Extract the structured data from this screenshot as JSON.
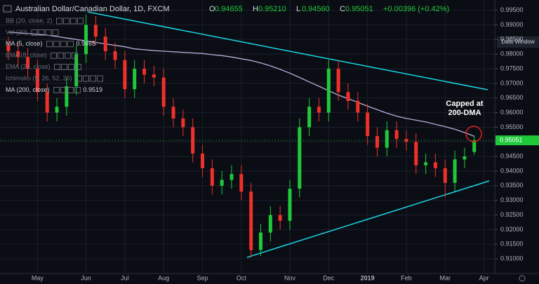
{
  "chart_data": {
    "type": "candlestick",
    "title": "Australian Dollar/Canadian Dollar, 1D, FXCM",
    "header_quote": [
      {
        "label": "O",
        "value": "0.94655"
      },
      {
        "label": "H",
        "value": "0.95210"
      },
      {
        "label": "L",
        "value": "0.94560"
      },
      {
        "label": "C",
        "value": "0.95051"
      }
    ],
    "change": "+0.00396 (+0.42%)",
    "indicators": [
      {
        "name": "BB (20, close, 2)"
      },
      {
        "name": "Vol (20)"
      },
      {
        "name": "MA (5, close)",
        "value": "0.9465"
      },
      {
        "name": "EMA (8, close)"
      },
      {
        "name": "EMA (21, close)"
      },
      {
        "name": "Ichimoku (9, 26, 52, 26)"
      }
    ],
    "data_window_button": "Data Window",
    "annotation": [
      "Capped at",
      "200-DMA"
    ],
    "categories": [
      null,
      null,
      null,
      "May",
      null,
      null,
      null,
      null,
      "Jun",
      null,
      null,
      null,
      "Jul",
      null,
      null,
      null,
      "Aug",
      null,
      null,
      null,
      "Sep",
      null,
      null,
      null,
      "Oct",
      null,
      null,
      null,
      null,
      "Nov",
      null,
      null,
      null,
      "Dec",
      null,
      null,
      null,
      "2019",
      null,
      null,
      null,
      "Feb",
      null,
      null,
      null,
      "Mar",
      null,
      null,
      null,
      "Apr"
    ],
    "open": [
      0.983,
      0.981,
      0.979,
      0.975,
      0.967,
      0.96,
      0.962,
      0.969,
      0.98,
      0.99,
      0.986,
      0.981,
      0.978,
      0.968,
      0.975,
      0.973,
      0.972,
      0.962,
      0.958,
      0.955,
      0.946,
      0.941,
      0.935,
      0.937,
      0.939,
      0.933,
      0.913,
      0.919,
      0.925,
      0.923,
      0.934,
      0.955,
      0.962,
      0.96,
      0.975,
      0.967,
      0.964,
      0.96,
      0.952,
      0.948,
      0.954,
      0.951,
      0.95,
      0.942,
      0.943,
      0.941,
      0.936,
      0.944,
      0.94655,
      null
    ],
    "high": [
      0.986,
      0.984,
      0.982,
      0.978,
      0.97,
      0.965,
      0.972,
      0.983,
      0.9935,
      0.993,
      0.989,
      0.984,
      0.981,
      0.978,
      0.978,
      0.976,
      0.975,
      0.965,
      0.961,
      0.958,
      0.949,
      0.944,
      0.94,
      0.942,
      0.942,
      0.936,
      0.922,
      0.928,
      0.928,
      0.937,
      0.958,
      0.965,
      0.965,
      0.978,
      0.978,
      0.97,
      0.967,
      0.963,
      0.955,
      0.957,
      0.957,
      0.954,
      0.953,
      0.946,
      0.946,
      0.944,
      0.947,
      0.948,
      0.9521,
      null
    ],
    "low": [
      0.978,
      0.976,
      0.972,
      0.964,
      0.957,
      0.957,
      0.959,
      0.966,
      0.977,
      0.983,
      0.978,
      0.975,
      0.965,
      0.965,
      0.97,
      0.969,
      0.959,
      0.955,
      0.952,
      0.943,
      0.938,
      0.932,
      0.932,
      0.934,
      0.93,
      0.9105,
      0.911,
      0.916,
      0.92,
      0.92,
      0.931,
      0.952,
      0.957,
      0.957,
      0.964,
      0.961,
      0.957,
      0.949,
      0.945,
      0.945,
      0.948,
      0.947,
      0.939,
      0.939,
      0.938,
      0.931,
      0.933,
      0.941,
      0.9456,
      null
    ],
    "close": [
      0.981,
      0.979,
      0.975,
      0.967,
      0.96,
      0.962,
      0.969,
      0.98,
      0.99,
      0.986,
      0.981,
      0.978,
      0.968,
      0.975,
      0.973,
      0.972,
      0.962,
      0.958,
      0.955,
      0.946,
      0.941,
      0.935,
      0.937,
      0.939,
      0.933,
      0.913,
      0.919,
      0.925,
      0.923,
      0.934,
      0.955,
      0.962,
      0.96,
      0.975,
      0.967,
      0.964,
      0.96,
      0.952,
      0.948,
      0.954,
      0.951,
      0.95,
      0.942,
      0.943,
      0.941,
      0.936,
      0.944,
      0.945,
      0.95051,
      null
    ],
    "up_color": "#1fc93a",
    "down_color": "#f0302a",
    "series": [
      {
        "name": "MA (200, close)",
        "color": "#b7add9",
        "last_value": "0.9519",
        "values": [
          0.9875,
          0.9873,
          0.987,
          0.9868,
          0.9865,
          0.986,
          0.9855,
          0.985,
          0.9845,
          0.984,
          0.9835,
          0.983,
          0.9825,
          0.9818,
          0.9815,
          0.9812,
          0.981,
          0.9808,
          0.9806,
          0.9804,
          0.9802,
          0.9798,
          0.9795,
          0.979,
          0.9784,
          0.9778,
          0.977,
          0.976,
          0.9748,
          0.9735,
          0.972,
          0.9705,
          0.969,
          0.9675,
          0.966,
          0.9648,
          0.9635,
          0.9622,
          0.961,
          0.9598,
          0.9588,
          0.958,
          0.9574,
          0.9568,
          0.956,
          0.9552,
          0.9543,
          0.9532,
          0.9519,
          null
        ]
      }
    ],
    "ylim": [
      0.905,
      0.9985
    ],
    "yticks": [
      {
        "value": 0.91,
        "label": "0.91000"
      },
      {
        "value": 0.915,
        "label": "0.91500"
      },
      {
        "value": 0.92,
        "label": "0.92000"
      },
      {
        "value": 0.925,
        "label": "0.92500"
      },
      {
        "value": 0.93,
        "label": "0.93000"
      },
      {
        "value": 0.935,
        "label": "0.93500"
      },
      {
        "value": 0.94,
        "label": "0.94000"
      },
      {
        "value": 0.945,
        "label": "0.94500"
      },
      {
        "value": 0.95,
        "label": "0.95000"
      },
      {
        "value": 0.955,
        "label": "0.95500"
      },
      {
        "value": 0.96,
        "label": "0.96000"
      },
      {
        "value": 0.965,
        "label": "0.96500"
      },
      {
        "value": 0.97,
        "label": "0.97000"
      },
      {
        "value": 0.975,
        "label": "0.97500"
      },
      {
        "value": 0.98,
        "label": "0.98000"
      },
      {
        "value": 0.985,
        "label": "0.98500"
      },
      {
        "value": 0.99,
        "label": "0.99000"
      },
      {
        "value": 0.995,
        "label": "0.99500"
      }
    ],
    "grid": true
  }
}
